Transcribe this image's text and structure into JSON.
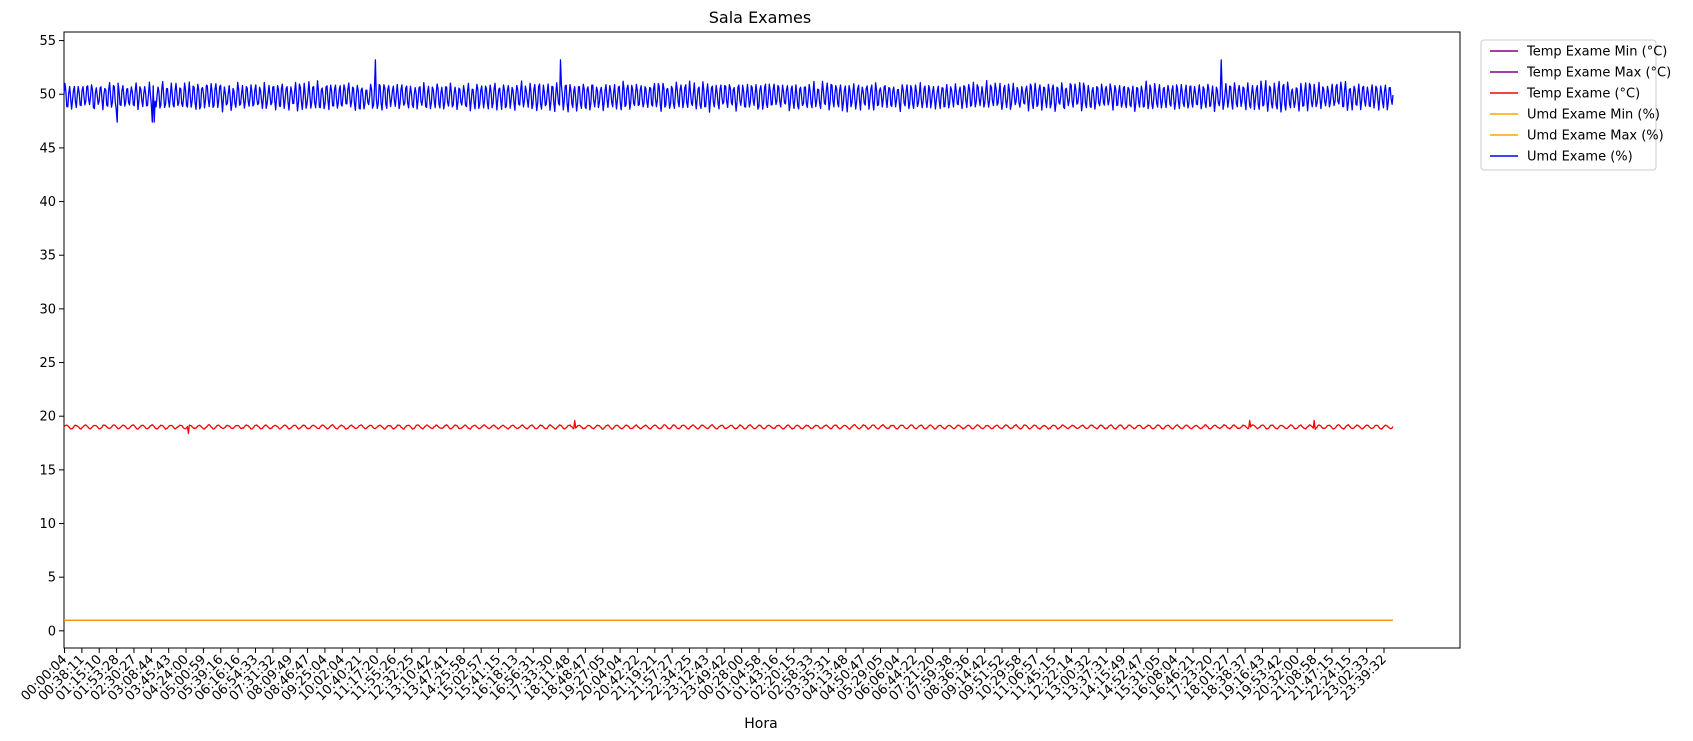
{
  "chart_data": {
    "type": "line",
    "title": "Sala Exames",
    "xlabel": "Hora",
    "ylabel": "",
    "ylim": [
      -1.6,
      55.8
    ],
    "yticks": [
      0,
      5,
      10,
      15,
      20,
      25,
      30,
      35,
      40,
      45,
      50,
      55
    ],
    "xticklabels": [
      "00:00:04",
      "00:38:11",
      "01:15:10",
      "01:53:28",
      "02:30:27",
      "03:08:44",
      "03:45:43",
      "04:24:00",
      "05:00:59",
      "05:39:16",
      "06:16:16",
      "06:54:33",
      "07:31:32",
      "08:09:49",
      "08:46:47",
      "09:25:04",
      "10:02:04",
      "10:40:21",
      "11:17:20",
      "11:55:26",
      "12:32:25",
      "13:10:42",
      "13:47:41",
      "14:25:58",
      "15:02:57",
      "15:41:15",
      "16:18:13",
      "16:56:31",
      "17:33:30",
      "18:11:48",
      "18:48:47",
      "19:27:05",
      "20:04:04",
      "20:42:22",
      "21:19:21",
      "21:57:27",
      "22:34:25",
      "23:12:43",
      "23:49:42",
      "00:28:00",
      "01:04:58",
      "01:43:16",
      "02:20:15",
      "02:58:33",
      "03:35:31",
      "04:13:48",
      "04:50:47",
      "05:29:05",
      "06:06:04",
      "06:44:22",
      "07:21:20",
      "07:59:38",
      "08:36:36",
      "09:14:42",
      "09:51:52",
      "10:29:58",
      "11:06:57",
      "11:45:15",
      "12:22:14",
      "13:00:32",
      "13:37:31",
      "14:15:49",
      "14:52:47",
      "15:31:05",
      "16:08:04",
      "16:46:21",
      "17:23:20",
      "18:01:27",
      "18:38:37",
      "19:16:43",
      "19:53:42",
      "20:32:00",
      "21:08:58",
      "21:47:15",
      "22:24:15",
      "23:02:33",
      "23:39:32"
    ],
    "legend_position": "outside-top-right",
    "series": [
      {
        "name": "Temp Exame Min (°C)",
        "color": "#800080",
        "constant": 1
      },
      {
        "name": "Temp Exame Max (°C)",
        "color": "#800080",
        "constant": 1
      },
      {
        "name": "Temp Exame (°C)",
        "color": "#ff0000",
        "mean": 19.0,
        "amplitude": 0.3,
        "min": 18.4,
        "max": 19.6
      },
      {
        "name": "Umd Exame Min (%)",
        "color": "#ffa500",
        "constant": 1
      },
      {
        "name": "Umd Exame Max (%)",
        "color": "#ffa500",
        "constant": 1
      },
      {
        "name": "Umd Exame (%)",
        "color": "#0000ff",
        "mean": 49.8,
        "amplitude": 1.2,
        "min": 47.4,
        "max": 53.2
      }
    ]
  }
}
